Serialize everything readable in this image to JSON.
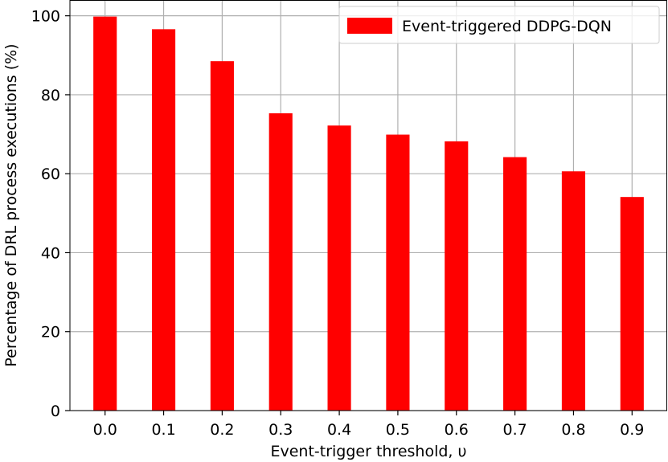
{
  "chart_data": {
    "type": "bar",
    "title": "",
    "xlabel": "Event-trigger threshold, υ",
    "ylabel": "Percentage of DRL process executions (%)",
    "categories": [
      "0.0",
      "0.1",
      "0.2",
      "0.3",
      "0.4",
      "0.5",
      "0.6",
      "0.7",
      "0.8",
      "0.9"
    ],
    "series": [
      {
        "name": "Event-triggered DDPG-DQN",
        "color": "#ff0000",
        "values": [
          99.8,
          96.6,
          88.5,
          75.3,
          72.2,
          69.9,
          68.2,
          64.2,
          60.6,
          54.1
        ]
      }
    ],
    "ylim": [
      0,
      104
    ],
    "yticks": [
      0,
      20,
      40,
      60,
      80,
      100
    ],
    "grid": true,
    "legend_position": "top-right"
  }
}
